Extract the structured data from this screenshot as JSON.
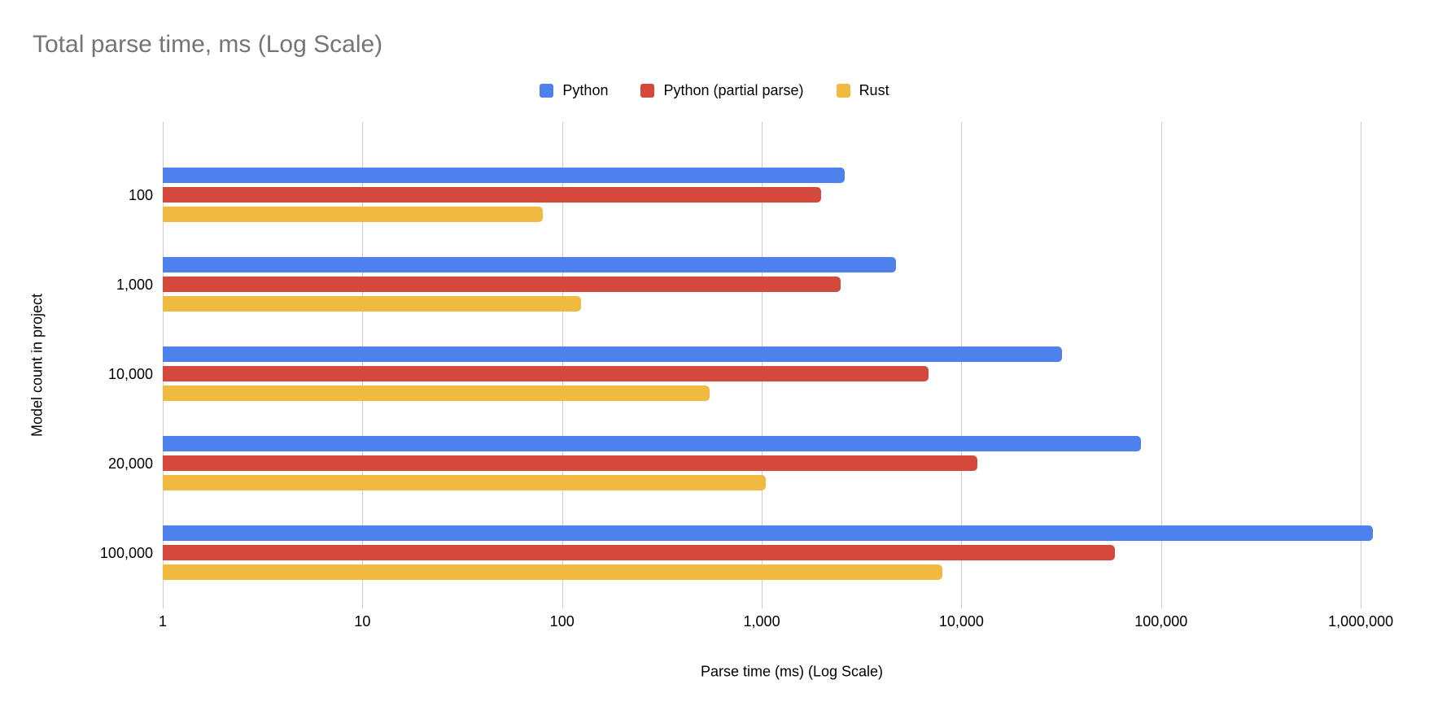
{
  "title": "Total parse time, ms (Log Scale)",
  "legend": [
    {
      "label": "Python",
      "color": "#4e81ed"
    },
    {
      "label": "Python (partial parse)",
      "color": "#d5493d"
    },
    {
      "label": "Rust",
      "color": "#f0b93f"
    }
  ],
  "colors": {
    "title_text": "#757575",
    "gridline": "#cccccc",
    "axis_text": "#000000"
  },
  "chart_data": {
    "type": "bar",
    "orientation": "horizontal",
    "title": "Total parse time, ms (Log Scale)",
    "xlabel": "Parse time (ms) (Log Scale)",
    "ylabel": "Model count in project",
    "x_scale": "log",
    "xlim": [
      1,
      2000000
    ],
    "grid": true,
    "legend_position": "top",
    "categories": [
      "100",
      "1,000",
      "10,000",
      "20,000",
      "100,000"
    ],
    "series": [
      {
        "name": "Python",
        "color": "#4e81ed",
        "values": [
          2600,
          4700,
          32000,
          79000,
          1150000
        ]
      },
      {
        "name": "Python (partial parse)",
        "color": "#d5493d",
        "values": [
          1980,
          2480,
          6850,
          12000,
          58500
        ]
      },
      {
        "name": "Rust",
        "color": "#f0b93f",
        "values": [
          80,
          125,
          550,
          1050,
          8000
        ]
      }
    ],
    "x_gridline_values": [
      1,
      10,
      100,
      1000,
      10000,
      100000,
      1000000
    ],
    "x_tick_labels": [
      "1",
      "10",
      "100",
      "1,000",
      "10,000",
      "100,000",
      "1,000,000"
    ]
  }
}
